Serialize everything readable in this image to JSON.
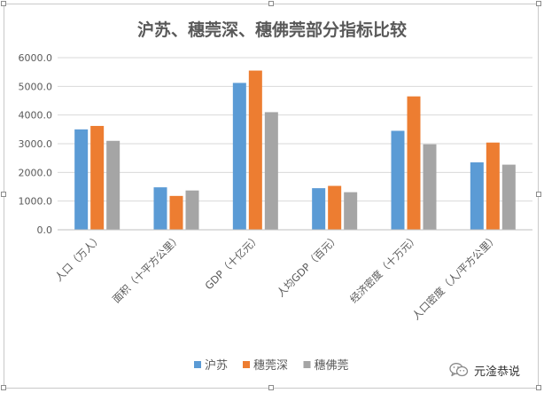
{
  "chart_data": {
    "type": "bar",
    "title": "沪苏、穗莞深、穗佛莞部分指标比较",
    "categories": [
      "人口（万人）",
      "面积（十平方公里）",
      "GDP（十亿元）",
      "人均GDP（百元）",
      "经济密度（十万元）",
      "人口密度（人/平方公里）"
    ],
    "series": [
      {
        "name": "沪苏",
        "color": "#5b9bd5",
        "values": [
          3500,
          1480,
          5120,
          1450,
          3450,
          2350
        ]
      },
      {
        "name": "穗莞深",
        "color": "#ed7d31",
        "values": [
          3620,
          1180,
          5550,
          1530,
          4650,
          3040
        ]
      },
      {
        "name": "穗佛莞",
        "color": "#a5a5a5",
        "values": [
          3100,
          1370,
          4100,
          1310,
          2980,
          2270
        ]
      }
    ],
    "ylim": [
      0,
      6000
    ],
    "yticks": [
      "0.0",
      "1000.0",
      "2000.0",
      "3000.0",
      "4000.0",
      "5000.0",
      "6000.0"
    ],
    "xlabel": "",
    "ylabel": "",
    "grid": true,
    "legend_position": "bottom"
  },
  "watermark": {
    "text": "元淦恭说",
    "icon": "wechat-icon"
  }
}
